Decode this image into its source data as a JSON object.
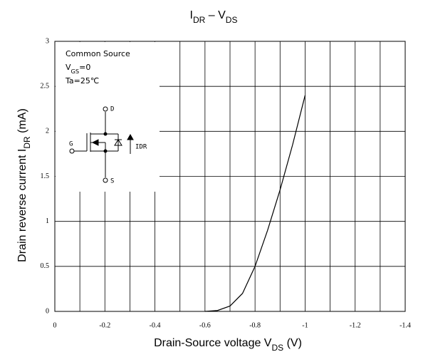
{
  "chart_data": {
    "type": "line",
    "title": [
      {
        "text": "I"
      },
      {
        "text": "DR",
        "sub": true
      },
      {
        "text": " – V"
      },
      {
        "text": "DS",
        "sub": true
      }
    ],
    "ylabel": [
      {
        "text": "Drain reverse current   I"
      },
      {
        "text": "DR",
        "sub": true
      },
      {
        "text": "   (mA)"
      }
    ],
    "xlabel": [
      {
        "text": "Drain-Source voltage   V"
      },
      {
        "text": "DS",
        "sub": true
      },
      {
        "text": "    (V)"
      }
    ],
    "x": [
      -0.6,
      -0.65,
      -0.7,
      -0.75,
      -0.8,
      -0.85,
      -0.9,
      -0.95,
      -1.0
    ],
    "series": [
      {
        "name": "IDR",
        "color": "#000000",
        "values": [
          0.0,
          0.01,
          0.06,
          0.2,
          0.5,
          0.9,
          1.35,
          1.85,
          2.4
        ]
      }
    ],
    "xlim": [
      0,
      -1.4
    ],
    "ylim": [
      0,
      3
    ],
    "xticks": [
      0,
      -0.2,
      -0.4,
      -0.6,
      -0.8,
      -1,
      -1.2,
      -1.4
    ],
    "xminor": [
      -0.1,
      -0.3,
      -0.5,
      -0.7,
      -0.9,
      -1.1,
      -1.3
    ],
    "yticks": [
      0,
      0.5,
      1,
      1.5,
      2,
      2.5,
      3
    ],
    "grid": true,
    "inset": {
      "lines": [
        [
          {
            "text": "Common Source"
          }
        ],
        [
          {
            "text": "V"
          },
          {
            "text": "GS",
            "sub": true
          },
          {
            "text": "=0"
          }
        ],
        [
          {
            "text": "Ta=25℃"
          }
        ]
      ],
      "drain": "D",
      "gate": "G",
      "source": "S",
      "current": "IDR"
    }
  }
}
